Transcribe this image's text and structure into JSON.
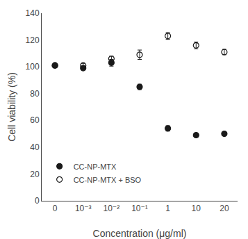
{
  "chart_data": {
    "type": "scatter",
    "categories": [
      "0",
      "10⁻³",
      "10⁻²",
      "10⁻¹",
      "1",
      "10",
      "20"
    ],
    "xlabel": "Concentration (μg/ml)",
    "ylabel": "Cell viability (%)",
    "series": [
      {
        "name": "CC-NP-MTX",
        "color": "#1a1a1a",
        "marker": "filled",
        "values": [
          101,
          99,
          103,
          85,
          54,
          49,
          50
        ],
        "yerr": [
          1.5,
          1.2,
          2.5,
          2.0,
          2.0,
          1.5,
          1.5
        ]
      },
      {
        "name": "CC-NP-MTX + BSO",
        "color": "#1a1a1a",
        "marker": "open",
        "values": [
          101,
          101,
          106,
          109,
          123,
          116,
          111
        ],
        "yerr": [
          1.5,
          1.5,
          2.0,
          3.5,
          2.5,
          2.5,
          2.0
        ]
      }
    ],
    "ylim": [
      0,
      140
    ],
    "yticks": [
      0,
      20,
      40,
      60,
      80,
      100,
      120,
      140
    ],
    "grid": false,
    "legend": "lower left"
  }
}
